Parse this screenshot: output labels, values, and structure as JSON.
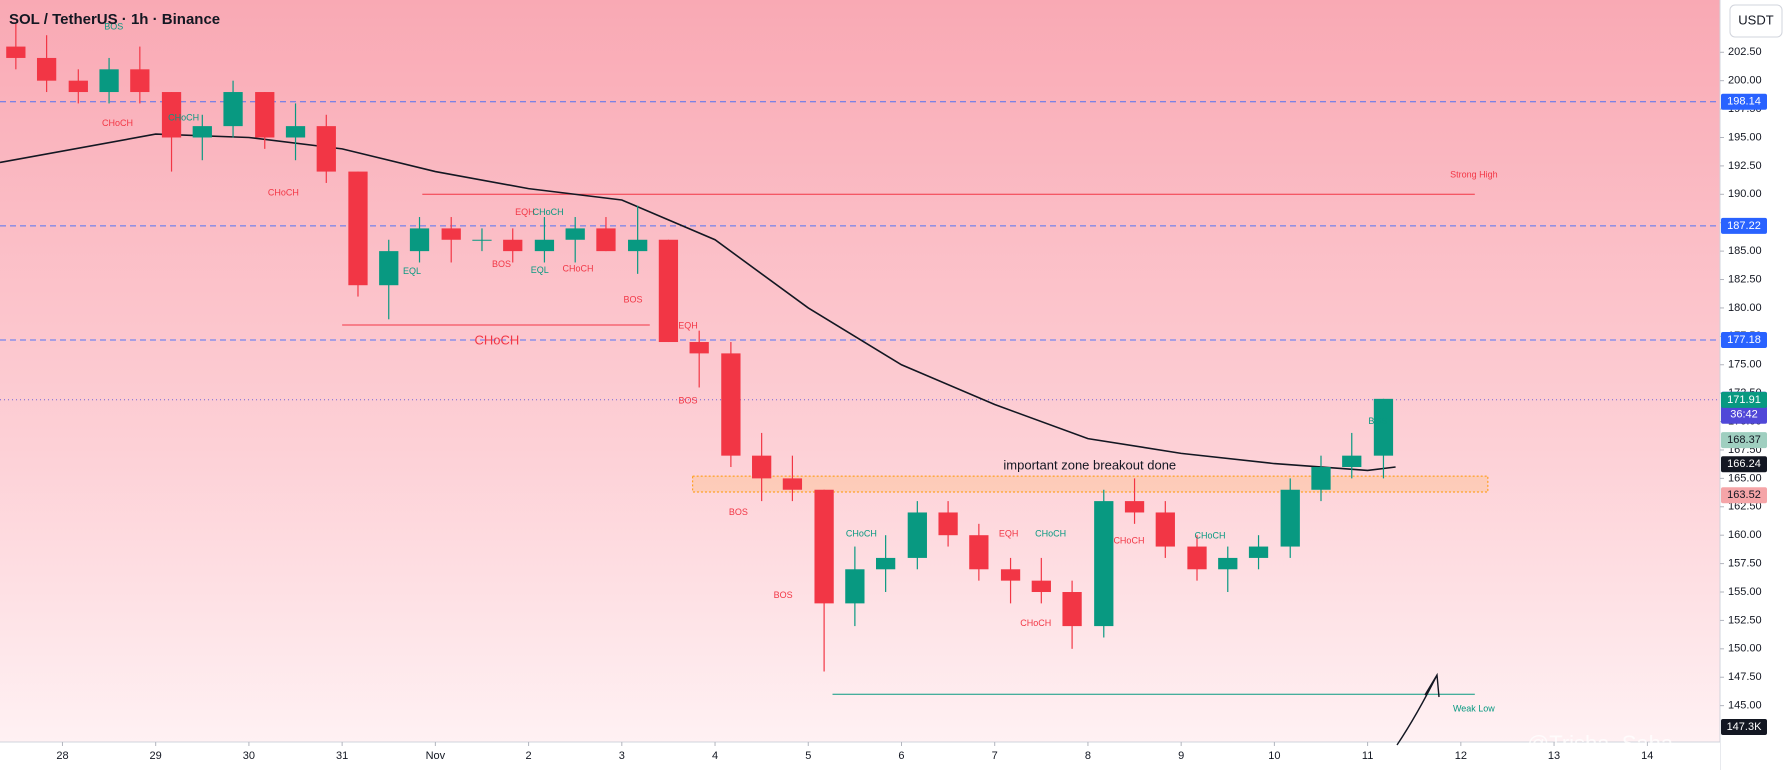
{
  "chart_data": {
    "type": "candlestick",
    "title": "SOL / TetherUS · 1h · Binance",
    "currency": "USDT",
    "watermark": "@Trisha_Saha",
    "up_color": "#089981",
    "down_color": "#f23645",
    "xlim": [
      -0.67,
      17.78
    ],
    "ylim": [
      141.8,
      207.1
    ],
    "xticks": [
      {
        "value": 0,
        "label": "28"
      },
      {
        "value": 1,
        "label": "29"
      },
      {
        "value": 2,
        "label": "30"
      },
      {
        "value": 3,
        "label": "31"
      },
      {
        "value": 4,
        "label": "Nov"
      },
      {
        "value": 5,
        "label": "2"
      },
      {
        "value": 6,
        "label": "3"
      },
      {
        "value": 7,
        "label": "4"
      },
      {
        "value": 8,
        "label": "5"
      },
      {
        "value": 9,
        "label": "6"
      },
      {
        "value": 10,
        "label": "7"
      },
      {
        "value": 11,
        "label": "8"
      },
      {
        "value": 12,
        "label": "9"
      },
      {
        "value": 13,
        "label": "10"
      },
      {
        "value": 14,
        "label": "11"
      },
      {
        "value": 15,
        "label": "12"
      },
      {
        "value": 16,
        "label": "13"
      },
      {
        "value": 17,
        "label": "14"
      }
    ],
    "yticks": [
      {
        "value": 145,
        "label": "145.00"
      },
      {
        "value": 147.5,
        "label": "147.50"
      },
      {
        "value": 150,
        "label": "150.00"
      },
      {
        "value": 152.5,
        "label": "152.50"
      },
      {
        "value": 155,
        "label": "155.00"
      },
      {
        "value": 157.5,
        "label": "157.50"
      },
      {
        "value": 160,
        "label": "160.00"
      },
      {
        "value": 162.5,
        "label": "162.50"
      },
      {
        "value": 165,
        "label": "165.00"
      },
      {
        "value": 167.5,
        "label": "167.50"
      },
      {
        "value": 170,
        "label": "170.00"
      },
      {
        "value": 172.5,
        "label": "172.50"
      },
      {
        "value": 175,
        "label": "175.00"
      },
      {
        "value": 177.5,
        "label": "177.50"
      },
      {
        "value": 180,
        "label": "180.00"
      },
      {
        "value": 182.5,
        "label": "182.50"
      },
      {
        "value": 185,
        "label": "185.00"
      },
      {
        "value": 187.5,
        "label": "187.50"
      },
      {
        "value": 190,
        "label": "190.00"
      },
      {
        "value": 192.5,
        "label": "192.50"
      },
      {
        "value": 195,
        "label": "195.00"
      },
      {
        "value": 197.5,
        "label": "197.50"
      },
      {
        "value": 200,
        "label": "200.00"
      },
      {
        "value": 202.5,
        "label": "202.50"
      }
    ],
    "x": [
      -0.5,
      -0.17,
      0.17,
      0.5,
      0.83,
      1.17,
      1.5,
      1.83,
      2.17,
      2.5,
      2.83,
      3.17,
      3.5,
      3.83,
      4.17,
      4.5,
      4.83,
      5.17,
      5.5,
      5.83,
      6.17,
      6.5,
      6.83,
      7.17,
      7.5,
      7.83,
      8.17,
      8.5,
      8.83,
      9.17,
      9.5,
      9.83,
      10.17,
      10.5,
      10.83,
      11.17,
      11.5,
      11.83,
      12.17,
      12.5,
      12.83,
      13.17,
      13.5,
      13.83,
      14.17
    ],
    "open": [
      203,
      202,
      200,
      199,
      201,
      199,
      195,
      196,
      199,
      195,
      196,
      192,
      182,
      185,
      187,
      186,
      186,
      185,
      186,
      187,
      185,
      186,
      177,
      176,
      167,
      165,
      164,
      154,
      157,
      158,
      162,
      160,
      157,
      156,
      155,
      152,
      163,
      162,
      159,
      157,
      158,
      159,
      164,
      166,
      167
    ],
    "high": [
      205,
      204,
      201,
      202,
      203,
      199,
      197,
      200,
      199,
      198,
      197,
      192,
      186,
      188,
      188,
      187,
      187,
      188,
      188,
      188,
      189,
      186,
      178,
      177,
      169,
      167,
      164,
      159,
      160,
      163,
      163,
      161,
      158,
      158,
      156,
      164,
      165,
      163,
      160,
      159,
      160,
      165,
      167,
      169,
      172
    ],
    "low": [
      201,
      199,
      198,
      198,
      198,
      192,
      193,
      195,
      194,
      193,
      191,
      181,
      179,
      184,
      184,
      185,
      184,
      184,
      184,
      185,
      183,
      177,
      173,
      166,
      163,
      163,
      148,
      152,
      155,
      157,
      159,
      156,
      154,
      154,
      150,
      151,
      161,
      158,
      156,
      155,
      157,
      158,
      163,
      165,
      165
    ],
    "close": [
      202,
      200,
      199,
      201,
      199,
      195,
      196,
      199,
      195,
      196,
      192,
      182,
      185,
      187,
      186,
      186,
      185,
      186,
      187,
      185,
      186,
      177,
      176,
      167,
      165,
      164,
      154,
      157,
      158,
      162,
      160,
      157,
      156,
      155,
      152,
      163,
      162,
      159,
      157,
      158,
      159,
      164,
      166,
      167,
      172
    ],
    "ma": {
      "color": "#131722",
      "x": [
        -0.67,
        1,
        2,
        3,
        4,
        5,
        6,
        7,
        8,
        9,
        10,
        11,
        12,
        13,
        14,
        14.3
      ],
      "values": [
        192.8,
        195.3,
        195,
        194,
        192,
        190.5,
        189.5,
        186,
        180,
        175,
        171.5,
        168.5,
        167.2,
        166.3,
        165.7,
        166
      ]
    },
    "levels": [
      {
        "value": 198.14,
        "color": "#2962ff",
        "text_color": "#ffffff",
        "line": "dashed"
      },
      {
        "value": 187.22,
        "color": "#2962ff",
        "text_color": "#ffffff",
        "line": "dashed"
      },
      {
        "value": 177.18,
        "color": "#2962ff",
        "text_color": "#ffffff",
        "line": "dashed"
      },
      {
        "value": 171.92,
        "color": "#5048d8",
        "text_color": "#ffffff",
        "line": "dotted"
      },
      {
        "value": 171.91,
        "color": "#089981",
        "text_color": "#ffffff"
      },
      {
        "value": 168.37,
        "color": "#9fcfc0",
        "text_color": "#131722"
      },
      {
        "value": 166.24,
        "color": "#131722",
        "text_color": "#ffffff"
      },
      {
        "value": 163.52,
        "color": "#f5a5a8",
        "text_color": "#131722"
      }
    ],
    "countdown": "36:42",
    "volume_label": "147.3K",
    "segments": [
      {
        "x": [
          3.86,
          15.15
        ],
        "value": 190,
        "color": "#f23645"
      },
      {
        "x": [
          3.0,
          6.3
        ],
        "value": 178.5,
        "color": "#f23645"
      },
      {
        "x": [
          8.26,
          15.15
        ],
        "value": 146,
        "color": "#089981"
      }
    ],
    "zone": {
      "x": [
        6.76,
        15.29
      ],
      "ylim": [
        163.8,
        165.2
      ],
      "color": "#ff9800"
    },
    "annotations": [
      {
        "text": "BOS",
        "x": 0.55,
        "y": 204.7,
        "color": "#089981"
      },
      {
        "text": "CHoCH",
        "x": 0.59,
        "y": 196.2,
        "color": "#f23645"
      },
      {
        "text": "CHoCH",
        "x": 1.3,
        "y": 196.7,
        "color": "#089981"
      },
      {
        "text": "CHoCH",
        "x": 2.37,
        "y": 190.1,
        "color": "#f23645"
      },
      {
        "text": "EQH",
        "x": 4.96,
        "y": 188.4,
        "color": "#f23645"
      },
      {
        "text": "CHoCH",
        "x": 5.21,
        "y": 188.4,
        "color": "#089981"
      },
      {
        "text": "EQL",
        "x": 3.75,
        "y": 183.2,
        "color": "#089981"
      },
      {
        "text": "BOS",
        "x": 4.71,
        "y": 183.8,
        "color": "#f23645"
      },
      {
        "text": "EQL",
        "x": 5.12,
        "y": 183.3,
        "color": "#089981"
      },
      {
        "text": "CHoCH",
        "x": 5.53,
        "y": 183.4,
        "color": "#f23645"
      },
      {
        "text": "BOS",
        "x": 6.12,
        "y": 180.7,
        "color": "#f23645"
      },
      {
        "text": "CHoCH",
        "x": 4.66,
        "y": 177.1,
        "color": "#f23645",
        "big": true
      },
      {
        "text": "EQH",
        "x": 6.71,
        "y": 178.4,
        "color": "#f23645"
      },
      {
        "text": "BOS",
        "x": 6.71,
        "y": 171.8,
        "color": "#f23645"
      },
      {
        "text": "BOS",
        "x": 7.25,
        "y": 162.0,
        "color": "#f23645"
      },
      {
        "text": "BOS",
        "x": 7.73,
        "y": 154.7,
        "color": "#f23645"
      },
      {
        "text": "CHoCH",
        "x": 8.57,
        "y": 160.1,
        "color": "#089981"
      },
      {
        "text": "EQH",
        "x": 10.15,
        "y": 160.1,
        "color": "#f23645"
      },
      {
        "text": "CHoCH",
        "x": 10.6,
        "y": 160.1,
        "color": "#089981"
      },
      {
        "text": "CHoCH",
        "x": 10.44,
        "y": 152.2,
        "color": "#f23645"
      },
      {
        "text": "CHoCH",
        "x": 11.44,
        "y": 159.5,
        "color": "#f23645"
      },
      {
        "text": "CHoCH",
        "x": 12.31,
        "y": 159.9,
        "color": "#089981"
      },
      {
        "text": "BOS",
        "x": 14.11,
        "y": 170.0,
        "color": "#089981"
      },
      {
        "text": "Strong High",
        "x": 15.14,
        "y": 191.7,
        "color": "#f23645"
      },
      {
        "text": "Weak Low",
        "x": 15.14,
        "y": 144.7,
        "color": "#089981"
      },
      {
        "text": "important zone breakout done",
        "x": 11.02,
        "y": 166.1,
        "color": "#131722",
        "big": true
      }
    ]
  }
}
